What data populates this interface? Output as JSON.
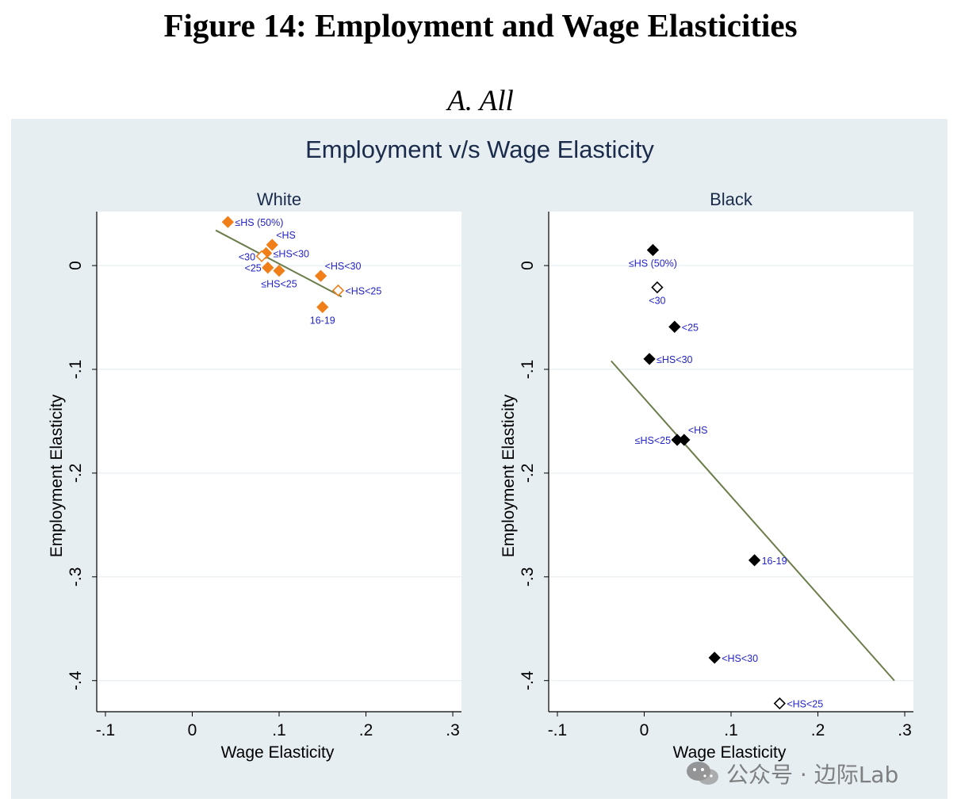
{
  "figure_title": "Figure 14: Employment and Wage Elasticities",
  "panel_title": "A. All",
  "watermark": {
    "text": "公众号 · 边际Lab"
  },
  "colors": {
    "background": "#e6eef2",
    "plot_bg": "#ffffff",
    "grid": "#eaf1f4",
    "title_text": "#1a2b4b",
    "label_text": "#2323c8",
    "white_marker": "#f07f1a",
    "black_marker": "#000000",
    "fit_line": "#6b7d4b"
  },
  "chart_data": {
    "type": "scatter",
    "title": "Employment v/s Wage Elasticity",
    "xlabel": "Wage Elasticity",
    "ylabel": "Employment Elasticity",
    "xlim": [
      -0.11,
      0.31
    ],
    "ylim": [
      -0.43,
      0.052
    ],
    "xticks": [
      -0.1,
      0,
      0.1,
      0.2,
      0.3
    ],
    "xtick_labels": [
      "-.1",
      "0",
      ".1",
      ".2",
      ".3"
    ],
    "yticks": [
      0,
      -0.1,
      -0.2,
      -0.3,
      -0.4
    ],
    "ytick_labels": [
      "0",
      "-.1",
      "-.2",
      "-.3",
      "-.4"
    ],
    "panels": [
      {
        "name": "White",
        "marker_color_key": "white_marker",
        "points": [
          {
            "label": "≤HS (50%)",
            "x": 0.041,
            "y": 0.042,
            "filled": true,
            "label_pos": "right"
          },
          {
            "label": "<HS",
            "x": 0.092,
            "y": 0.02,
            "filled": true,
            "label_pos": "upper-right"
          },
          {
            "label": "≤HS<30",
            "x": 0.085,
            "y": 0.012,
            "filled": true,
            "label_pos": "right"
          },
          {
            "label": "<30",
            "x": 0.08,
            "y": 0.009,
            "filled": false,
            "label_pos": "left"
          },
          {
            "label": "<25",
            "x": 0.087,
            "y": -0.002,
            "filled": true,
            "label_pos": "left"
          },
          {
            "label": "≤HS<25",
            "x": 0.1,
            "y": -0.005,
            "filled": true,
            "label_pos": "below"
          },
          {
            "label": "<HS<30",
            "x": 0.148,
            "y": -0.01,
            "filled": true,
            "label_pos": "upper-right"
          },
          {
            "label": "<HS<25",
            "x": 0.168,
            "y": -0.024,
            "filled": false,
            "label_pos": "right"
          },
          {
            "label": "16-19",
            "x": 0.15,
            "y": -0.04,
            "filled": true,
            "label_pos": "below"
          }
        ],
        "fit": {
          "x": [
            0.027,
            0.172
          ],
          "y": [
            0.034,
            -0.03
          ]
        }
      },
      {
        "name": "Black",
        "marker_color_key": "black_marker",
        "points": [
          {
            "label": "≤HS (50%)",
            "x": 0.01,
            "y": 0.015,
            "filled": true,
            "label_pos": "below"
          },
          {
            "label": "<30",
            "x": 0.015,
            "y": -0.021,
            "filled": false,
            "label_pos": "below"
          },
          {
            "label": "<25",
            "x": 0.035,
            "y": -0.059,
            "filled": true,
            "label_pos": "right"
          },
          {
            "label": "≤HS<30",
            "x": 0.006,
            "y": -0.09,
            "filled": true,
            "label_pos": "right"
          },
          {
            "label": "<HS",
            "x": 0.046,
            "y": -0.168,
            "filled": true,
            "label_pos": "upper-right"
          },
          {
            "label": "≤HS<25",
            "x": 0.038,
            "y": -0.168,
            "filled": true,
            "label_pos": "left"
          },
          {
            "label": "16-19",
            "x": 0.127,
            "y": -0.284,
            "filled": true,
            "label_pos": "right"
          },
          {
            "label": "<HS<30",
            "x": 0.081,
            "y": -0.378,
            "filled": true,
            "label_pos": "right"
          },
          {
            "label": "<HS<25",
            "x": 0.156,
            "y": -0.422,
            "filled": false,
            "label_pos": "right"
          }
        ],
        "fit": {
          "x": [
            -0.038,
            0.288
          ],
          "y": [
            -0.092,
            -0.4
          ]
        }
      }
    ]
  }
}
